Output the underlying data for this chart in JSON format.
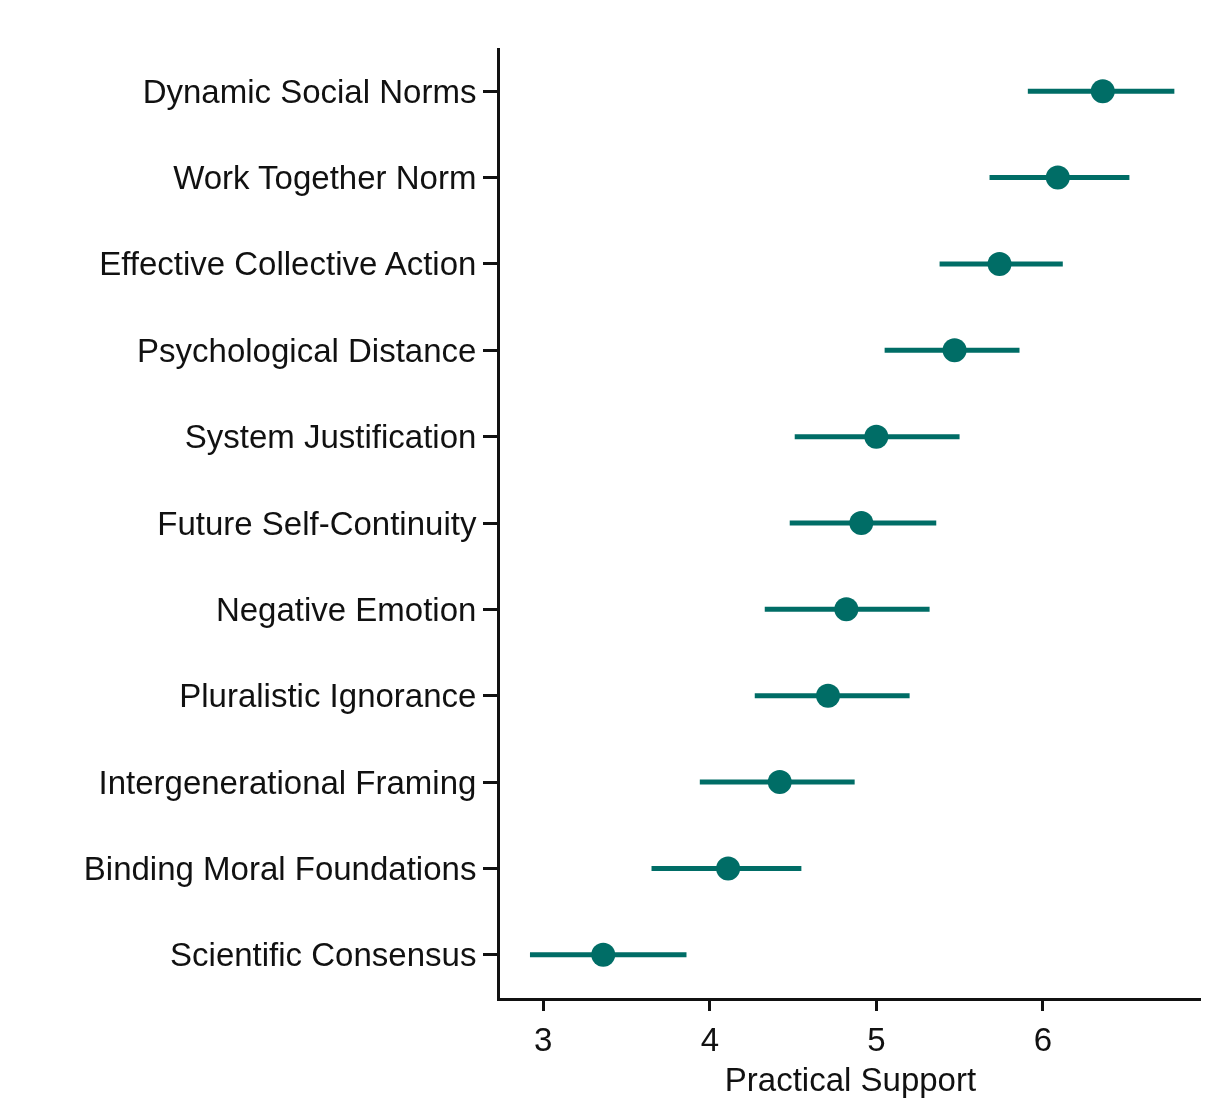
{
  "chart_data": {
    "type": "scatter",
    "xlabel": "Practical Support",
    "categories": [
      "Dynamic Social Norms",
      "Work Together Norm",
      "Effective Collective Action",
      "Psychological Distance",
      "System Justification",
      "Future Self-Continuity",
      "Negative Emotion",
      "Pluralistic Ignorance",
      "Intergenerational Framing",
      "Binding Moral Foundations",
      "Scientific Consensus"
    ],
    "orientation": "horizontal",
    "values": [
      6.36,
      6.09,
      5.74,
      5.47,
      5.0,
      4.91,
      4.82,
      4.71,
      4.42,
      4.11,
      3.36
    ],
    "errors": [
      [
        5.91,
        6.79
      ],
      [
        5.68,
        6.52
      ],
      [
        5.38,
        6.12
      ],
      [
        5.05,
        5.86
      ],
      [
        4.51,
        5.5
      ],
      [
        4.48,
        5.36
      ],
      [
        4.33,
        5.32
      ],
      [
        4.27,
        5.2
      ],
      [
        3.94,
        4.87
      ],
      [
        3.65,
        4.55
      ],
      [
        2.92,
        3.86
      ]
    ],
    "color": "#006d66",
    "marker": "circle",
    "xlim": [
      2.74,
      6.95
    ],
    "xticks": [
      3,
      4,
      5,
      6
    ]
  }
}
